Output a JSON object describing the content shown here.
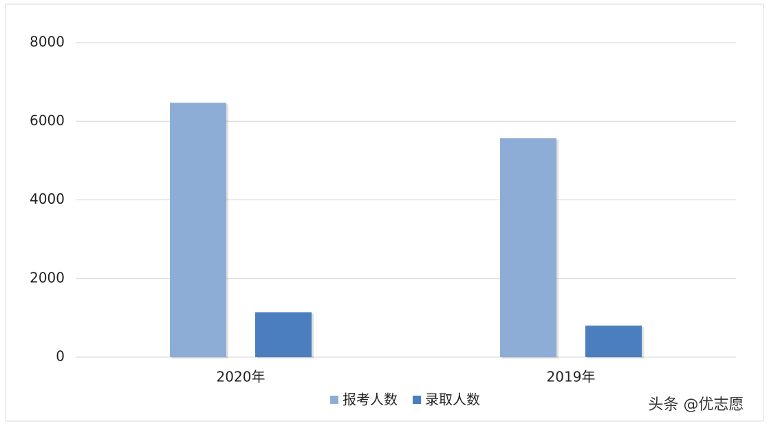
{
  "chart_data": {
    "type": "bar",
    "categories": [
      "2020年",
      "2019年"
    ],
    "series": [
      {
        "name": "报考人数",
        "color": "#8eadd6",
        "values": [
          6470,
          5570
        ]
      },
      {
        "name": "录取人数",
        "color": "#4a7ebf",
        "values": [
          1140,
          800
        ]
      }
    ],
    "ylim": [
      0,
      8000
    ],
    "yticks": [
      0,
      2000,
      4000,
      6000,
      8000
    ],
    "grid": true,
    "legend": "bottom",
    "annotation": "头条 @优志愿"
  }
}
